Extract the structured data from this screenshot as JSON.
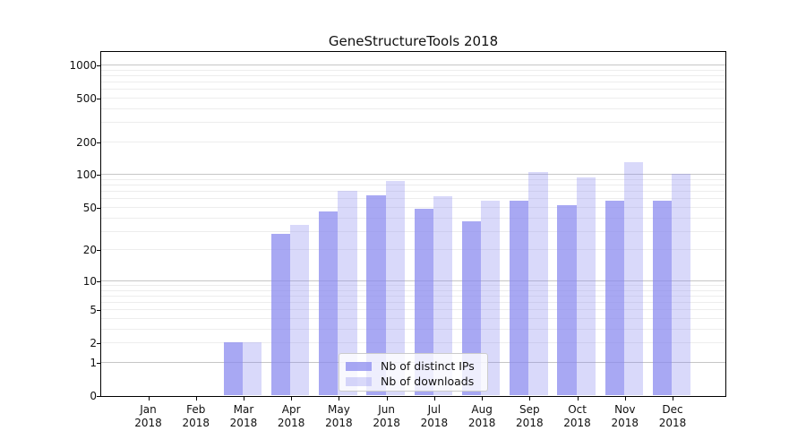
{
  "chart_data": {
    "type": "bar",
    "title": "GeneStructureTools 2018",
    "categories": [
      "Jan",
      "Feb",
      "Mar",
      "Apr",
      "May",
      "Jun",
      "Jul",
      "Aug",
      "Sep",
      "Oct",
      "Nov",
      "Dec"
    ],
    "year_label": "2018",
    "series": [
      {
        "name": "Nb of distinct IPs",
        "values": [
          0,
          0,
          2,
          28,
          45,
          64,
          48,
          37,
          57,
          52,
          57,
          57
        ],
        "base_color": "#8888ee",
        "alpha": 0.73
      },
      {
        "name": "Nb of downloads",
        "values": [
          0,
          0,
          2,
          34,
          70,
          87,
          63,
          57,
          105,
          94,
          128,
          100
        ],
        "base_color": "#8888ee",
        "alpha": 0.32
      }
    ],
    "yscale": "log1p",
    "yticks": [
      0,
      1,
      2,
      5,
      10,
      20,
      50,
      100,
      200,
      500,
      1000
    ],
    "ylim": [
      0,
      1320
    ],
    "xlabel": "",
    "ylabel": "",
    "grid": "on",
    "grid_major_color": "#c6c6c6",
    "grid_minor_color": "#ededed",
    "legend_position": "lower-center",
    "background_color": "#ffffff",
    "spine_color": "#000000"
  }
}
